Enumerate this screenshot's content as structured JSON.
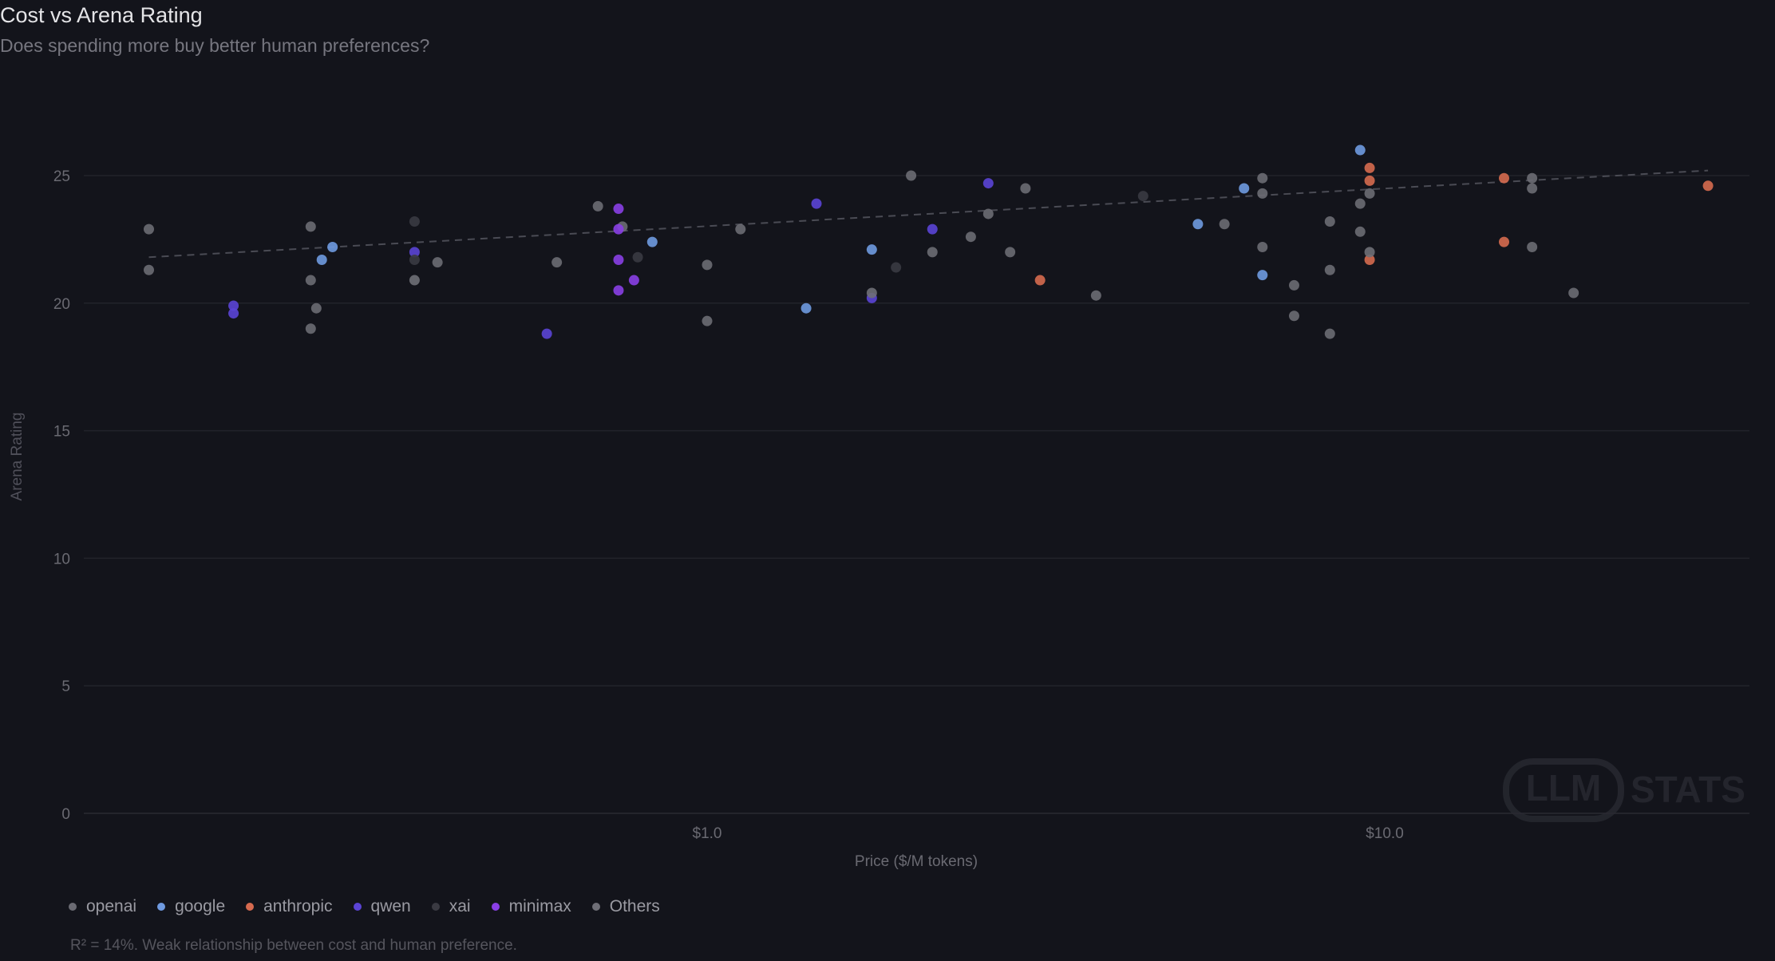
{
  "chart_data": {
    "type": "scatter",
    "title": "Cost vs Arena Rating",
    "subtitle": "Does spending more buy better human preferences?",
    "xlabel": "Price ($/M tokens)",
    "ylabel": "Arena Rating",
    "x_scale": "log",
    "xlim": [
      0.12,
      35
    ],
    "ylim": [
      0,
      28
    ],
    "x_ticks": [
      {
        "value": 1.0,
        "label": "$1.0"
      },
      {
        "value": 10.0,
        "label": "$10.0"
      }
    ],
    "y_ticks": [
      {
        "value": 0,
        "label": "0"
      },
      {
        "value": 5,
        "label": "5"
      },
      {
        "value": 10,
        "label": "10"
      },
      {
        "value": 15,
        "label": "15"
      },
      {
        "value": 20,
        "label": "20"
      },
      {
        "value": 25,
        "label": "25"
      }
    ],
    "grid": true,
    "legend_position": "bottom-left",
    "series": [
      {
        "name": "openai",
        "color": "#6b6b73",
        "points": [
          [
            0.15,
            22.9
          ],
          [
            0.15,
            21.3
          ],
          [
            0.26,
            23.0
          ],
          [
            0.26,
            20.9
          ],
          [
            0.26,
            19.0
          ],
          [
            0.265,
            19.8
          ],
          [
            0.4,
            21.6
          ],
          [
            0.6,
            21.6
          ],
          [
            0.69,
            23.8
          ],
          [
            0.75,
            23.0
          ],
          [
            1.0,
            21.5
          ],
          [
            1.0,
            19.3
          ],
          [
            1.12,
            22.9
          ],
          [
            2.0,
            25.0
          ],
          [
            2.15,
            22.0
          ],
          [
            2.45,
            22.6
          ],
          [
            2.6,
            23.5
          ],
          [
            2.8,
            22.0
          ],
          [
            2.95,
            24.5
          ],
          [
            3.75,
            20.3
          ],
          [
            5.8,
            23.1
          ],
          [
            6.6,
            24.9
          ],
          [
            6.6,
            24.3
          ],
          [
            6.6,
            22.2
          ],
          [
            7.35,
            20.7
          ],
          [
            7.35,
            19.5
          ],
          [
            8.3,
            23.2
          ],
          [
            8.3,
            21.3
          ],
          [
            8.3,
            18.8
          ],
          [
            9.2,
            23.9
          ],
          [
            9.2,
            22.8
          ],
          [
            9.5,
            24.3
          ],
          [
            16.5,
            24.9
          ],
          [
            16.5,
            24.5
          ],
          [
            16.5,
            22.2
          ],
          [
            19.0,
            20.4
          ]
        ]
      },
      {
        "name": "google",
        "color": "#6f9ae0",
        "points": [
          [
            0.27,
            21.7
          ],
          [
            0.28,
            22.2
          ],
          [
            0.83,
            22.4
          ],
          [
            1.4,
            19.8
          ],
          [
            1.75,
            22.1
          ],
          [
            5.3,
            23.1
          ],
          [
            6.2,
            24.5
          ],
          [
            6.6,
            21.1
          ],
          [
            9.2,
            26.0
          ]
        ]
      },
      {
        "name": "anthropic",
        "color": "#d66a4f",
        "points": [
          [
            3.1,
            20.9
          ],
          [
            9.5,
            25.3
          ],
          [
            9.5,
            24.8
          ],
          [
            9.5,
            21.7
          ],
          [
            15.0,
            24.9
          ],
          [
            15.0,
            22.4
          ],
          [
            30.0,
            24.6
          ]
        ]
      },
      {
        "name": "qwen",
        "color": "#5b44d6",
        "points": [
          [
            0.2,
            19.9
          ],
          [
            0.2,
            19.6
          ],
          [
            0.37,
            22.0
          ],
          [
            0.58,
            18.8
          ],
          [
            1.45,
            23.9
          ],
          [
            1.75,
            20.2
          ],
          [
            2.15,
            22.9
          ],
          [
            2.6,
            24.7
          ]
        ]
      },
      {
        "name": "xai",
        "color": "#3a3a42",
        "points": [
          [
            0.37,
            23.2
          ],
          [
            0.37,
            21.7
          ],
          [
            0.79,
            21.8
          ],
          [
            1.9,
            21.4
          ],
          [
            4.4,
            24.2
          ]
        ]
      },
      {
        "name": "minimax",
        "color": "#8a3fe6",
        "points": [
          [
            0.74,
            23.7
          ],
          [
            0.74,
            22.9
          ],
          [
            0.74,
            21.7
          ],
          [
            0.74,
            20.5
          ],
          [
            0.78,
            20.9
          ]
        ]
      },
      {
        "name": "Others",
        "color": "#6f6f77",
        "points": [
          [
            0.37,
            20.9
          ],
          [
            1.75,
            20.4
          ],
          [
            9.5,
            22.0
          ]
        ]
      }
    ],
    "trendline": {
      "style": "dashed",
      "x": [
        0.15,
        30.0
      ],
      "y": [
        21.8,
        25.2
      ]
    },
    "annotation": "R² = 14%. Weak relationship between cost and human preference."
  },
  "watermark": {
    "text_boxed": "LLM",
    "text": "STATS"
  }
}
